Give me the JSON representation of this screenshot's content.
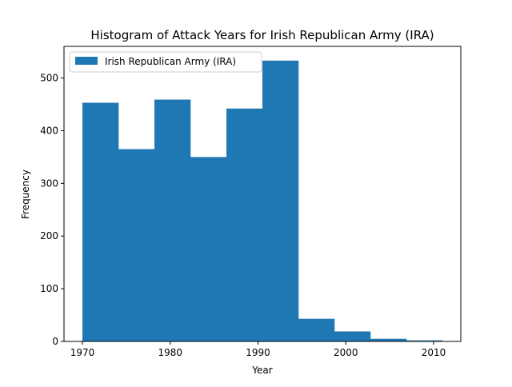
{
  "chart_data": {
    "type": "bar",
    "title": "Histogram of Attack Years for Irish Republican Army (IRA)",
    "xlabel": "Year",
    "ylabel": "Frequency",
    "xlim": [
      1967.9,
      2013.1
    ],
    "ylim": [
      0,
      560
    ],
    "xticks": [
      1970,
      1980,
      1990,
      2000,
      2010
    ],
    "yticks": [
      0,
      100,
      200,
      300,
      400,
      500
    ],
    "bins": [
      {
        "start": 1970.0,
        "end": 1974.1,
        "value": 453
      },
      {
        "start": 1974.1,
        "end": 1978.2,
        "value": 365
      },
      {
        "start": 1978.2,
        "end": 1982.3,
        "value": 459
      },
      {
        "start": 1982.3,
        "end": 1986.4,
        "value": 350
      },
      {
        "start": 1986.4,
        "end": 1990.5,
        "value": 442
      },
      {
        "start": 1990.5,
        "end": 1994.6,
        "value": 533
      },
      {
        "start": 1994.6,
        "end": 1998.7,
        "value": 43
      },
      {
        "start": 1998.7,
        "end": 2002.8,
        "value": 19
      },
      {
        "start": 2002.8,
        "end": 2006.9,
        "value": 5
      },
      {
        "start": 2006.9,
        "end": 2011.0,
        "value": 2
      }
    ],
    "series": [
      {
        "name": "Irish Republican Army (IRA)",
        "color": "#1f77b4"
      }
    ],
    "legend_position": "top-left",
    "grid": false
  }
}
